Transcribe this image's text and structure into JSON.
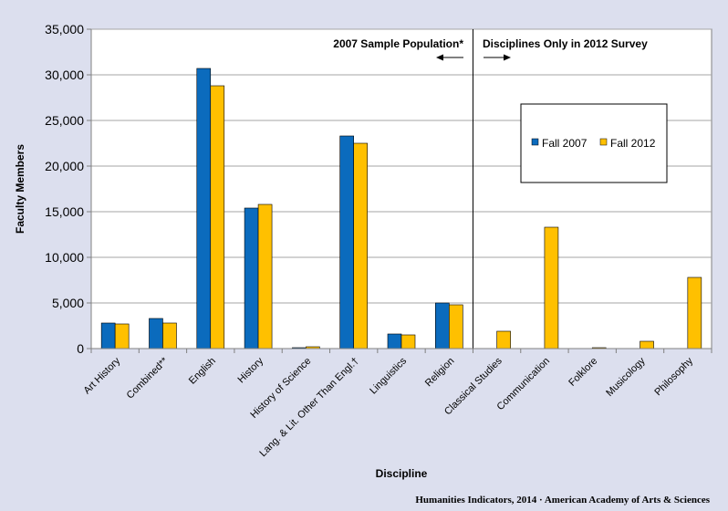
{
  "chart_data": {
    "type": "bar",
    "xlabel": "Discipline",
    "ylabel": "Faculty Members",
    "ylim": [
      0,
      35000
    ],
    "yticks": [
      0,
      5000,
      10000,
      15000,
      20000,
      25000,
      30000,
      35000
    ],
    "ytick_labels": [
      "0",
      "5,000",
      "10,000",
      "15,000",
      "20,000",
      "25,000",
      "30,000",
      "35,000"
    ],
    "grid": true,
    "legend_placement": "upper-right",
    "categories": [
      "Art History",
      "Combined**",
      "English",
      "History",
      "History of Science",
      "Lang. & Lit. Other Than Engl.†",
      "Linguistics",
      "Religion",
      "Classical Studies",
      "Communication",
      "Folklore",
      "Musicology",
      "Philosophy"
    ],
    "series": [
      {
        "name": "Fall 2007",
        "color": "#0b6bbd",
        "values": [
          2800,
          3300,
          30700,
          15400,
          100,
          23300,
          1600,
          5000,
          null,
          null,
          null,
          null,
          null
        ]
      },
      {
        "name": "Fall 2012",
        "color": "#ffc000",
        "values": [
          2700,
          2800,
          28800,
          15800,
          200,
          22500,
          1500,
          4800,
          1900,
          13300,
          100,
          800,
          7800
        ]
      }
    ],
    "annotations": {
      "left_region": "2007 Sample Population*",
      "right_region": "Disciplines Only in 2012 Survey",
      "divider_after_category": "Religion"
    },
    "source": "Humanities Indicators, 2014 · American Academy of Arts & Sciences"
  }
}
